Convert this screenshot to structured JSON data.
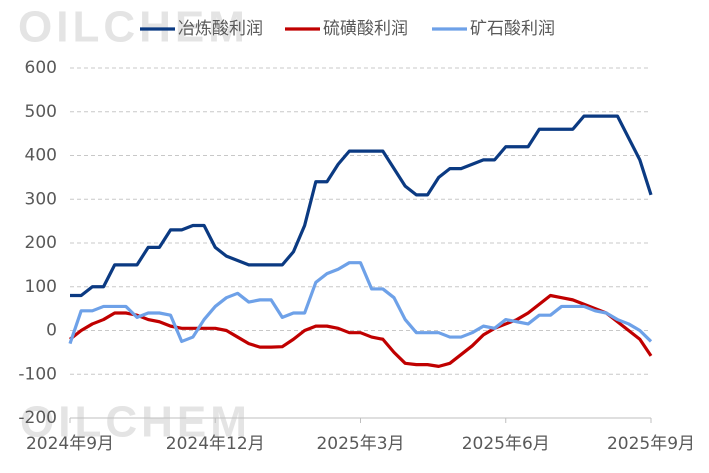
{
  "chart_data": {
    "type": "line",
    "watermark": "OILCHEM",
    "categories": [
      "2024年9月",
      null,
      null,
      null,
      null,
      null,
      null,
      null,
      null,
      null,
      null,
      null,
      null,
      "2024年12月",
      null,
      null,
      null,
      null,
      null,
      null,
      null,
      null,
      null,
      null,
      null,
      null,
      "2025年3月",
      null,
      null,
      null,
      null,
      null,
      null,
      null,
      null,
      null,
      null,
      null,
      null,
      "2025年6月",
      null,
      null,
      null,
      null,
      null,
      null,
      null,
      null,
      null,
      null,
      null,
      null,
      "2025年9月"
    ],
    "series": [
      {
        "name": "冶炼酸利润",
        "color": "#0b3a82",
        "values": [
          80,
          80,
          100,
          100,
          150,
          150,
          150,
          190,
          190,
          230,
          230,
          240,
          240,
          190,
          170,
          160,
          150,
          150,
          150,
          150,
          180,
          240,
          340,
          340,
          380,
          410,
          410,
          410,
          410,
          370,
          330,
          310,
          310,
          350,
          370,
          370,
          380,
          390,
          390,
          420,
          420,
          420,
          460,
          460,
          460,
          460,
          490,
          490,
          490,
          490,
          440,
          390,
          310
        ]
      },
      {
        "name": "硫磺酸利润",
        "color": "#c00000",
        "values": [
          -20,
          0,
          15,
          25,
          40,
          40,
          35,
          25,
          20,
          10,
          5,
          5,
          5,
          5,
          0,
          -15,
          -30,
          -38,
          -38,
          -37,
          -20,
          0,
          10,
          10,
          5,
          -5,
          -5,
          -15,
          -20,
          -50,
          -75,
          -78,
          -78,
          -82,
          -75,
          -55,
          -35,
          -10,
          5,
          15,
          25,
          40,
          60,
          80,
          75,
          70,
          60,
          50,
          40,
          20,
          0,
          -20,
          -58
        ]
      },
      {
        "name": "矿石酸利润",
        "color": "#6ea1e8",
        "values": [
          -30,
          45,
          45,
          55,
          55,
          55,
          30,
          40,
          40,
          35,
          -25,
          -15,
          25,
          55,
          75,
          85,
          65,
          70,
          70,
          30,
          40,
          40,
          110,
          130,
          140,
          155,
          155,
          95,
          95,
          75,
          25,
          -5,
          -5,
          -5,
          -15,
          -15,
          -5,
          10,
          5,
          25,
          20,
          15,
          35,
          35,
          55,
          55,
          55,
          45,
          40,
          25,
          15,
          0,
          -25
        ]
      }
    ],
    "ylim": [
      -200,
      600
    ],
    "yticks": [
      -200,
      -100,
      0,
      100,
      200,
      300,
      400,
      500,
      600
    ],
    "grid": true
  }
}
